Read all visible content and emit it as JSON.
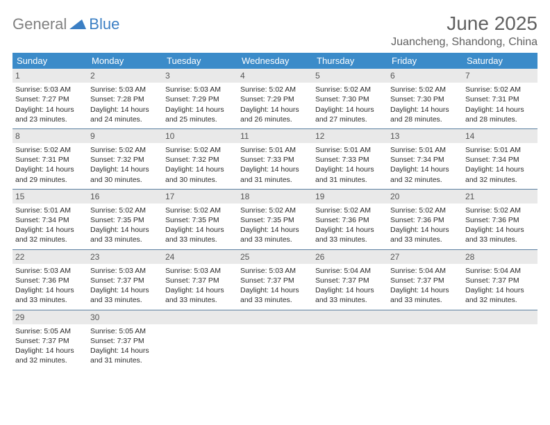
{
  "logo": {
    "gray": "General",
    "blue": "Blue"
  },
  "title": "June 2025",
  "location": "Juancheng, Shandong, China",
  "header_bg": "#3b8bc9",
  "weekdays": [
    "Sunday",
    "Monday",
    "Tuesday",
    "Wednesday",
    "Thursday",
    "Friday",
    "Saturday"
  ],
  "weeks": [
    [
      {
        "n": "1",
        "sr": "5:03 AM",
        "ss": "7:27 PM",
        "dl1": "Daylight: 14 hours",
        "dl2": "and 23 minutes."
      },
      {
        "n": "2",
        "sr": "5:03 AM",
        "ss": "7:28 PM",
        "dl1": "Daylight: 14 hours",
        "dl2": "and 24 minutes."
      },
      {
        "n": "3",
        "sr": "5:03 AM",
        "ss": "7:29 PM",
        "dl1": "Daylight: 14 hours",
        "dl2": "and 25 minutes."
      },
      {
        "n": "4",
        "sr": "5:02 AM",
        "ss": "7:29 PM",
        "dl1": "Daylight: 14 hours",
        "dl2": "and 26 minutes."
      },
      {
        "n": "5",
        "sr": "5:02 AM",
        "ss": "7:30 PM",
        "dl1": "Daylight: 14 hours",
        "dl2": "and 27 minutes."
      },
      {
        "n": "6",
        "sr": "5:02 AM",
        "ss": "7:30 PM",
        "dl1": "Daylight: 14 hours",
        "dl2": "and 28 minutes."
      },
      {
        "n": "7",
        "sr": "5:02 AM",
        "ss": "7:31 PM",
        "dl1": "Daylight: 14 hours",
        "dl2": "and 28 minutes."
      }
    ],
    [
      {
        "n": "8",
        "sr": "5:02 AM",
        "ss": "7:31 PM",
        "dl1": "Daylight: 14 hours",
        "dl2": "and 29 minutes."
      },
      {
        "n": "9",
        "sr": "5:02 AM",
        "ss": "7:32 PM",
        "dl1": "Daylight: 14 hours",
        "dl2": "and 30 minutes."
      },
      {
        "n": "10",
        "sr": "5:02 AM",
        "ss": "7:32 PM",
        "dl1": "Daylight: 14 hours",
        "dl2": "and 30 minutes."
      },
      {
        "n": "11",
        "sr": "5:01 AM",
        "ss": "7:33 PM",
        "dl1": "Daylight: 14 hours",
        "dl2": "and 31 minutes."
      },
      {
        "n": "12",
        "sr": "5:01 AM",
        "ss": "7:33 PM",
        "dl1": "Daylight: 14 hours",
        "dl2": "and 31 minutes."
      },
      {
        "n": "13",
        "sr": "5:01 AM",
        "ss": "7:34 PM",
        "dl1": "Daylight: 14 hours",
        "dl2": "and 32 minutes."
      },
      {
        "n": "14",
        "sr": "5:01 AM",
        "ss": "7:34 PM",
        "dl1": "Daylight: 14 hours",
        "dl2": "and 32 minutes."
      }
    ],
    [
      {
        "n": "15",
        "sr": "5:01 AM",
        "ss": "7:34 PM",
        "dl1": "Daylight: 14 hours",
        "dl2": "and 32 minutes."
      },
      {
        "n": "16",
        "sr": "5:02 AM",
        "ss": "7:35 PM",
        "dl1": "Daylight: 14 hours",
        "dl2": "and 33 minutes."
      },
      {
        "n": "17",
        "sr": "5:02 AM",
        "ss": "7:35 PM",
        "dl1": "Daylight: 14 hours",
        "dl2": "and 33 minutes."
      },
      {
        "n": "18",
        "sr": "5:02 AM",
        "ss": "7:35 PM",
        "dl1": "Daylight: 14 hours",
        "dl2": "and 33 minutes."
      },
      {
        "n": "19",
        "sr": "5:02 AM",
        "ss": "7:36 PM",
        "dl1": "Daylight: 14 hours",
        "dl2": "and 33 minutes."
      },
      {
        "n": "20",
        "sr": "5:02 AM",
        "ss": "7:36 PM",
        "dl1": "Daylight: 14 hours",
        "dl2": "and 33 minutes."
      },
      {
        "n": "21",
        "sr": "5:02 AM",
        "ss": "7:36 PM",
        "dl1": "Daylight: 14 hours",
        "dl2": "and 33 minutes."
      }
    ],
    [
      {
        "n": "22",
        "sr": "5:03 AM",
        "ss": "7:36 PM",
        "dl1": "Daylight: 14 hours",
        "dl2": "and 33 minutes."
      },
      {
        "n": "23",
        "sr": "5:03 AM",
        "ss": "7:37 PM",
        "dl1": "Daylight: 14 hours",
        "dl2": "and 33 minutes."
      },
      {
        "n": "24",
        "sr": "5:03 AM",
        "ss": "7:37 PM",
        "dl1": "Daylight: 14 hours",
        "dl2": "and 33 minutes."
      },
      {
        "n": "25",
        "sr": "5:03 AM",
        "ss": "7:37 PM",
        "dl1": "Daylight: 14 hours",
        "dl2": "and 33 minutes."
      },
      {
        "n": "26",
        "sr": "5:04 AM",
        "ss": "7:37 PM",
        "dl1": "Daylight: 14 hours",
        "dl2": "and 33 minutes."
      },
      {
        "n": "27",
        "sr": "5:04 AM",
        "ss": "7:37 PM",
        "dl1": "Daylight: 14 hours",
        "dl2": "and 33 minutes."
      },
      {
        "n": "28",
        "sr": "5:04 AM",
        "ss": "7:37 PM",
        "dl1": "Daylight: 14 hours",
        "dl2": "and 32 minutes."
      }
    ],
    [
      {
        "n": "29",
        "sr": "5:05 AM",
        "ss": "7:37 PM",
        "dl1": "Daylight: 14 hours",
        "dl2": "and 32 minutes."
      },
      {
        "n": "30",
        "sr": "5:05 AM",
        "ss": "7:37 PM",
        "dl1": "Daylight: 14 hours",
        "dl2": "and 31 minutes."
      },
      {
        "n": "",
        "empty": true
      },
      {
        "n": "",
        "empty": true
      },
      {
        "n": "",
        "empty": true
      },
      {
        "n": "",
        "empty": true
      },
      {
        "n": "",
        "empty": true
      }
    ]
  ]
}
